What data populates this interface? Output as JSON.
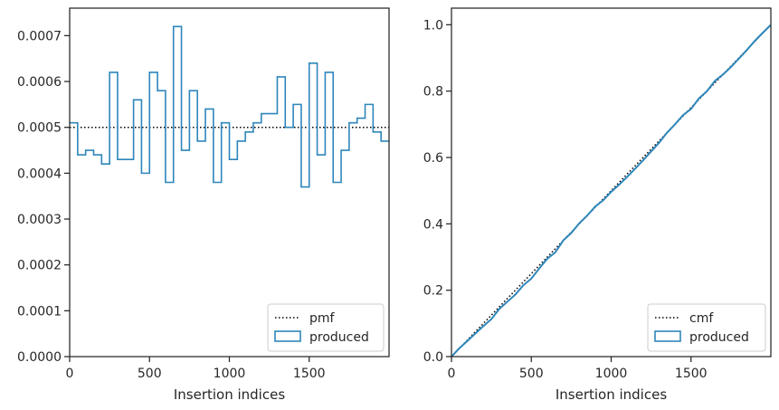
{
  "colors": {
    "produced": "#2e86ba",
    "reference": "#000000",
    "frame": "#262626"
  },
  "chart_data": [
    {
      "type": "histogram-step",
      "xlabel": "Insertion indices",
      "xlim": [
        0,
        2000
      ],
      "ylim": [
        0,
        0.00076
      ],
      "xticks": [
        0,
        500,
        1000,
        1500
      ],
      "xtick_labels": [
        "0",
        "500",
        "1000",
        "1500"
      ],
      "yticks": [
        0,
        0.0001,
        0.0002,
        0.0003,
        0.0004,
        0.0005,
        0.0006,
        0.0007
      ],
      "ytick_labels": [
        "0.0000",
        "0.0001",
        "0.0002",
        "0.0003",
        "0.0004",
        "0.0005",
        "0.0006",
        "0.0007"
      ],
      "legend_position": "lower-right",
      "reference": {
        "name": "pmf",
        "style": "dotted",
        "value": 0.0005
      },
      "produced": {
        "name": "produced",
        "bin_edges": [
          0,
          50,
          100,
          150,
          200,
          250,
          300,
          350,
          400,
          450,
          500,
          550,
          600,
          650,
          700,
          750,
          800,
          850,
          900,
          950,
          1000,
          1050,
          1100,
          1150,
          1200,
          1250,
          1300,
          1350,
          1400,
          1450,
          1500,
          1550,
          1600,
          1650,
          1700,
          1750,
          1800,
          1850,
          1900,
          1950,
          2000
        ],
        "values": [
          0.00051,
          0.00044,
          0.00045,
          0.00044,
          0.00042,
          0.00062,
          0.00043,
          0.00043,
          0.00056,
          0.0004,
          0.00062,
          0.00058,
          0.00038,
          0.00072,
          0.00045,
          0.00058,
          0.00047,
          0.00054,
          0.00038,
          0.00051,
          0.00043,
          0.00047,
          0.00049,
          0.00051,
          0.00053,
          0.00053,
          0.00061,
          0.0005,
          0.00055,
          0.00037,
          0.00064,
          0.00044,
          0.00062,
          0.00038,
          0.00045,
          0.00051,
          0.00052,
          0.00055,
          0.00049,
          0.00047
        ]
      }
    },
    {
      "type": "line",
      "xlabel": "Insertion indices",
      "xlim": [
        0,
        2000
      ],
      "ylim": [
        0,
        1.05
      ],
      "xticks": [
        0,
        500,
        1000,
        1500
      ],
      "xtick_labels": [
        "0",
        "500",
        "1000",
        "1500"
      ],
      "yticks": [
        0,
        0.2,
        0.4,
        0.6,
        0.8,
        1.0
      ],
      "ytick_labels": [
        "0.0",
        "0.2",
        "0.4",
        "0.6",
        "0.8",
        "1.0"
      ],
      "legend_position": "lower-right",
      "reference": {
        "name": "cmf",
        "style": "dotted",
        "x": [
          0,
          2000
        ],
        "y": [
          0,
          1.0
        ]
      },
      "produced": {
        "name": "produced",
        "x": [
          0,
          50,
          100,
          150,
          200,
          250,
          300,
          350,
          400,
          450,
          500,
          550,
          600,
          650,
          700,
          750,
          800,
          850,
          900,
          950,
          1000,
          1050,
          1100,
          1150,
          1200,
          1250,
          1300,
          1350,
          1400,
          1450,
          1500,
          1550,
          1600,
          1650,
          1700,
          1750,
          1800,
          1850,
          1900,
          1950,
          2000
        ],
        "y": [
          0,
          0.0255,
          0.0475,
          0.07,
          0.092,
          0.113,
          0.144,
          0.1655,
          0.187,
          0.215,
          0.235,
          0.266,
          0.295,
          0.314,
          0.35,
          0.3725,
          0.4015,
          0.425,
          0.452,
          0.471,
          0.4965,
          0.518,
          0.5415,
          0.566,
          0.5915,
          0.618,
          0.6445,
          0.675,
          0.7,
          0.7275,
          0.746,
          0.778,
          0.8,
          0.831,
          0.85,
          0.8725,
          0.898,
          0.924,
          0.9515,
          0.976,
          0.9995
        ]
      }
    }
  ]
}
